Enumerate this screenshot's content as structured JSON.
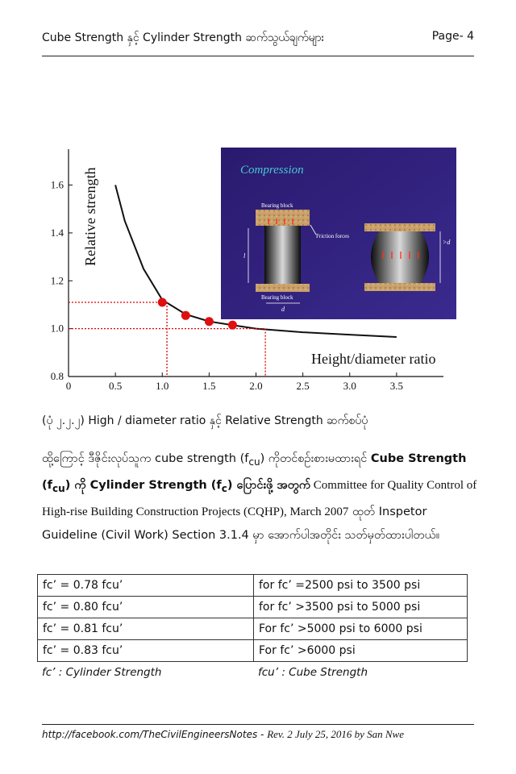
{
  "header": {
    "title": "Cube Strength နှင့် Cylinder Strength ဆက်သွယ်ချက်များ",
    "page": "Page- 4"
  },
  "figure": {
    "ylabel": "Relative strength",
    "xlabel": "Height/diameter ratio",
    "x_ticks": [
      "0",
      "0.5",
      "1.0",
      "1.5",
      "2.0",
      "2.5",
      "3.0",
      "3.5"
    ],
    "y_ticks": [
      "0.8",
      "1.0",
      "1.2",
      "1.4",
      "1.6"
    ],
    "inset": {
      "title": "Compression",
      "bearing_block_top": "Bearing block",
      "bearing_block_bottom": "Bearing block",
      "friction": "Friction forces",
      "l_label": "l",
      "d_label": "d",
      "gt_d_label": ">d"
    }
  },
  "chart_data": {
    "type": "line",
    "xlim": [
      0,
      4
    ],
    "ylim": [
      0.8,
      1.75
    ],
    "series": [
      {
        "values": [
          [
            0.5,
            1.6
          ],
          [
            0.6,
            1.45
          ],
          [
            0.8,
            1.25
          ],
          [
            1.0,
            1.12
          ],
          [
            1.25,
            1.06
          ],
          [
            1.5,
            1.03
          ],
          [
            1.75,
            1.015
          ],
          [
            2.0,
            1.0
          ],
          [
            2.5,
            0.985
          ],
          [
            3.0,
            0.975
          ],
          [
            3.5,
            0.965
          ]
        ]
      }
    ],
    "points": [
      [
        1.0,
        1.11
      ],
      [
        1.25,
        1.055
      ],
      [
        1.5,
        1.03
      ],
      [
        1.75,
        1.015
      ]
    ],
    "grid": false
  },
  "caption": "(ပုံ ၂.၂.၂) High / diameter ratio နှင့် Relative Strength ဆက်စပ်ပုံ",
  "paragraph": {
    "p1": "ထို့ကြောင့် ဒီဇိုင်းလုပ်သူက cube strength (f",
    "sub_cu1": "cu",
    "p2": ") ကိုတင်စဉ်းစားမထားရင် ",
    "b1": "Cube Strength (f",
    "sub_cu2": "cu",
    "b2": ") ကို Cylinder Strength (f",
    "sub_c": "c",
    "b3": ") ပြောင်းဖို့ အတွက်",
    "p3": " Committee for Quality Control of High-rise Building Construction Projects (CQHP), March 2007",
    "p4": " ထုတ် Inspetor Guideline (Civil Work) Section 3.1.4 မှာ အောက်ပါအတိုင်း သတ်မှတ်ထားပါတယ်။"
  },
  "table": [
    [
      "fc’ = 0.78 fcu’",
      "for  fc’ =2500 psi to 3500 psi"
    ],
    [
      "fc’ = 0.80 fcu’",
      "for  fc’ >3500 psi to 5000 psi"
    ],
    [
      "fc’ = 0.81 fcu’",
      "For  fc’ >5000 psi to 6000 psi"
    ],
    [
      "fc’ = 0.83 fcu’",
      "For fc’ >6000 psi"
    ]
  ],
  "legend": {
    "fc": "fc’ : Cylinder Strength",
    "fcu": "fcu’ : Cube Strength"
  },
  "footer": {
    "url": "http://facebook.com/TheCivilEngineersNotes -",
    "rev": "Rev. 2 July 25, 2016  by San Nwe"
  }
}
